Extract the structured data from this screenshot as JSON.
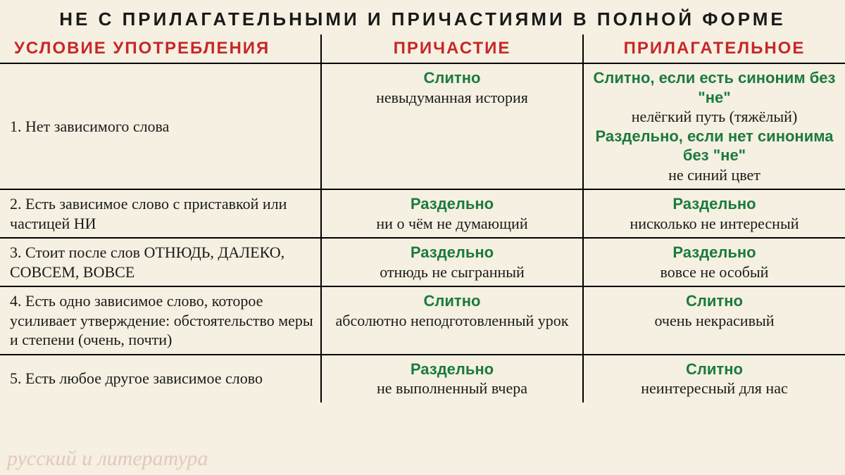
{
  "title": "НЕ С ПРИЛАГАТЕЛЬНЫМИ И ПРИЧАСТИЯМИ В ПОЛНОЙ ФОРМЕ",
  "headers": {
    "col1": "УСЛОВИЕ УПОТРЕБЛЕНИЯ",
    "col2": "ПРИЧАСТИЕ",
    "col3": "ПРИЛАГАТЕЛЬНОЕ"
  },
  "rows": [
    {
      "condition": "1. Нет зависимого слова",
      "participle": {
        "rule": "Слитно",
        "example": "невыдуманная история"
      },
      "adjective": {
        "rule1": "Слитно, если есть синоним без \"не\"",
        "example1": "нелёгкий путь (тяжёлый)",
        "rule2": "Раздельно, если нет синонима без \"не\"",
        "example2": "не синий цвет"
      }
    },
    {
      "condition": "2. Есть зависимое слово с приставкой или частицей НИ",
      "participle": {
        "rule": "Раздельно",
        "example": "ни о чём не думающий"
      },
      "adjective": {
        "rule": "Раздельно",
        "example": "нисколько не интересный"
      }
    },
    {
      "condition": "3. Стоит после слов ОТНЮДЬ, ДАЛЕКО, СОВСЕМ, ВОВСЕ",
      "participle": {
        "rule": "Раздельно",
        "example": "отнюдь не сыгранный"
      },
      "adjective": {
        "rule": "Раздельно",
        "example": "вовсе не особый"
      }
    },
    {
      "condition": "4. Есть одно зависимое слово, которое усиливает утверждение: обстоятельство меры и степени (очень, почти)",
      "participle": {
        "rule": "Слитно",
        "example": "абсолютно неподготовленный урок"
      },
      "adjective": {
        "rule": "Слитно",
        "example": "очень некрасивый"
      }
    },
    {
      "condition": "5. Есть любое другое зависимое слово",
      "participle": {
        "rule": "Раздельно",
        "example": "не выполненный вчера"
      },
      "adjective": {
        "rule": "Слитно",
        "example": "неинтересный для нас"
      }
    }
  ],
  "watermark": "русский и литература",
  "colors": {
    "background": "#f5f0e1",
    "header_text": "#c62828",
    "rule_text": "#1b7a3e",
    "body_text": "#1a1a1a",
    "border": "#000000"
  }
}
